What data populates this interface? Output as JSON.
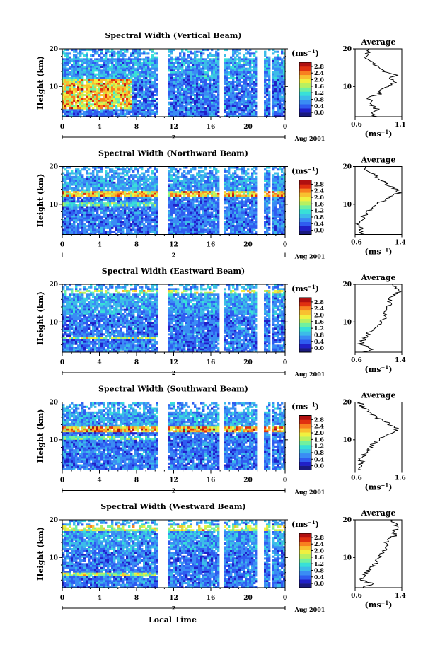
{
  "figure": {
    "xlabel": "Local Time"
  },
  "colors": {
    "gap": "#ffffff",
    "axis": "#000000",
    "profile": "#000000"
  },
  "colorbar": {
    "unit": "(ms",
    "unit_exp": "−1",
    "unit_close": ")",
    "ticks": [
      "2.8",
      "2.4",
      "2.0",
      "1.6",
      "1.2",
      "0.8",
      "0.4",
      "0.0"
    ],
    "colors": [
      "#1a1a80",
      "#2020c8",
      "#2f5cf0",
      "#3a8cf4",
      "#3cbce8",
      "#38e0d8",
      "#70f0a0",
      "#b8f060",
      "#f0f040",
      "#f8c030",
      "#f88020",
      "#e03010",
      "#b01010"
    ]
  },
  "chart_data": [
    {
      "type": "heatmap",
      "title": "Spectral Width (Vertical Beam)",
      "ylabel": "Height (km)",
      "yticks": [
        "20",
        "10"
      ],
      "ytick_values": [
        20,
        10
      ],
      "ylim": [
        2,
        20
      ],
      "xticks": [
        "0",
        "4",
        "8",
        "12",
        "16",
        "20",
        "0"
      ],
      "xlim": [
        0,
        24
      ],
      "day_label": "2",
      "month_label": "Aug 2001",
      "gaps": [
        [
          10.3,
          11.5
        ],
        [
          17.0,
          17.4
        ],
        [
          21.0,
          21.8
        ],
        [
          22.3,
          22.7
        ]
      ],
      "hotspots": [
        [
          0,
          7.5,
          4,
          12,
          1.6
        ]
      ],
      "noise": 0.35,
      "profile": {
        "title": "Average",
        "xticks": [
          "0.6",
          "1.1"
        ],
        "xlim": [
          0.6,
          1.1
        ],
        "xlabel": "(ms",
        "xlabel_exp": "−1",
        "xlabel_close": ")",
        "yticks": [
          "20",
          "10"
        ],
        "heights": [
          2,
          3,
          4,
          5,
          6,
          7,
          8,
          9,
          10,
          11,
          12,
          13,
          14,
          15,
          16,
          17,
          18,
          19,
          20
        ],
        "values": [
          0.82,
          0.8,
          0.83,
          0.78,
          0.8,
          0.74,
          0.86,
          0.84,
          0.95,
          1.02,
          0.98,
          1.04,
          0.92,
          0.88,
          0.8,
          0.74,
          0.7,
          0.74,
          0.72
        ]
      }
    },
    {
      "type": "heatmap",
      "title": "Spectral Width (Northward Beam)",
      "ylabel": "Height (km)",
      "yticks": [
        "20",
        "10"
      ],
      "ytick_values": [
        20,
        10
      ],
      "ylim": [
        2,
        20
      ],
      "xticks": [
        "0",
        "4",
        "8",
        "12",
        "16",
        "20",
        "0"
      ],
      "xlim": [
        0,
        24
      ],
      "day_label": "2",
      "month_label": "Aug 2001",
      "gaps": [
        [
          10.3,
          11.5
        ],
        [
          17.0,
          17.4
        ],
        [
          21.0,
          21.8
        ],
        [
          22.3,
          22.7
        ]
      ],
      "hotspots": [
        [
          0,
          24,
          12.2,
          13.4,
          1.4
        ],
        [
          0,
          10,
          9.5,
          10.5,
          0.8
        ]
      ],
      "noise": 0.3,
      "profile": {
        "title": "Average",
        "xticks": [
          "0.6",
          "1.4"
        ],
        "xlim": [
          0.6,
          1.4
        ],
        "xlabel": "(ms",
        "xlabel_exp": "−1",
        "xlabel_close": ")",
        "yticks": [
          "20",
          "10"
        ],
        "heights": [
          2,
          3,
          4,
          5,
          6,
          7,
          8,
          9,
          10,
          11,
          12,
          13,
          14,
          15,
          16,
          17,
          18,
          19,
          20
        ],
        "values": [
          0.72,
          0.68,
          0.7,
          0.66,
          0.72,
          0.76,
          0.8,
          0.88,
          0.95,
          1.1,
          1.22,
          1.35,
          1.3,
          1.18,
          1.1,
          1.0,
          0.92,
          0.8,
          0.78
        ]
      }
    },
    {
      "type": "heatmap",
      "title": "Spectral Width (Eastward Beam)",
      "ylabel": "Height (km)",
      "yticks": [
        "20",
        "10"
      ],
      "ytick_values": [
        20,
        10
      ],
      "ylim": [
        2,
        20
      ],
      "xticks": [
        "0",
        "4",
        "8",
        "12",
        "16",
        "20",
        "0"
      ],
      "xlim": [
        0,
        24
      ],
      "day_label": "2",
      "month_label": "Aug 2001",
      "gaps": [
        [
          10.3,
          11.5
        ],
        [
          17.0,
          17.4
        ],
        [
          21.0,
          21.8
        ],
        [
          22.3,
          22.7
        ]
      ],
      "hotspots": [
        [
          0,
          10,
          5.3,
          5.9,
          1.2
        ],
        [
          0,
          24,
          17.5,
          18.5,
          1.0
        ]
      ],
      "noise": 0.3,
      "profile": {
        "title": "Average",
        "xticks": [
          "0.6",
          "1.4"
        ],
        "xlim": [
          0.6,
          1.4
        ],
        "xlabel": "(ms",
        "xlabel_exp": "−1",
        "xlabel_close": ")",
        "yticks": [
          "20",
          "10"
        ],
        "heights": [
          2,
          3,
          4,
          5,
          6,
          7,
          8,
          9,
          10,
          11,
          12,
          13,
          14,
          15,
          16,
          17,
          18,
          19,
          20
        ],
        "values": [
          0.75,
          0.9,
          0.7,
          0.72,
          0.78,
          0.82,
          0.9,
          0.98,
          1.05,
          1.1,
          1.12,
          1.1,
          1.15,
          1.2,
          1.18,
          1.25,
          1.38,
          1.3,
          1.25
        ]
      }
    },
    {
      "type": "heatmap",
      "title": "Spectral Width (Southward Beam)",
      "ylabel": "Height (km)",
      "yticks": [
        "20",
        "10"
      ],
      "ytick_values": [
        20,
        10
      ],
      "ylim": [
        2,
        20
      ],
      "xticks": [
        "0",
        "4",
        "8",
        "12",
        "16",
        "20",
        "0"
      ],
      "xlim": [
        0,
        24
      ],
      "day_label": "2",
      "month_label": "Aug 2001",
      "gaps": [
        [
          10.3,
          11.5
        ],
        [
          17.0,
          17.4
        ],
        [
          21.0,
          21.8
        ],
        [
          22.3,
          22.7
        ]
      ],
      "hotspots": [
        [
          0,
          24,
          12.0,
          13.6,
          1.6
        ],
        [
          0,
          10,
          10.0,
          10.8,
          0.8
        ]
      ],
      "noise": 0.3,
      "profile": {
        "title": "Average",
        "xticks": [
          "0.6",
          "1.6"
        ],
        "xlim": [
          0.6,
          1.6
        ],
        "xlabel": "(ms",
        "xlabel_exp": "−1",
        "xlabel_close": ")",
        "yticks": [
          "20",
          "10"
        ],
        "heights": [
          2,
          3,
          4,
          5,
          6,
          7,
          8,
          9,
          10,
          11,
          12,
          13,
          14,
          15,
          16,
          17,
          18,
          19,
          20
        ],
        "values": [
          0.72,
          0.7,
          0.74,
          0.72,
          0.78,
          0.85,
          0.92,
          1.0,
          1.1,
          1.25,
          1.4,
          1.5,
          1.35,
          1.2,
          1.05,
          0.95,
          0.85,
          0.75,
          0.7
        ]
      }
    },
    {
      "type": "heatmap",
      "title": "Spectral Width (Westward Beam)",
      "ylabel": "Height (km)",
      "yticks": [
        "20",
        "10"
      ],
      "ytick_values": [
        20,
        10
      ],
      "ylim": [
        2,
        20
      ],
      "xticks": [
        "0",
        "4",
        "8",
        "12",
        "16",
        "20",
        "0"
      ],
      "xlim": [
        0,
        24
      ],
      "day_label": "2",
      "month_label": "Aug 2001",
      "gaps": [
        [
          10.3,
          11.5
        ],
        [
          17.0,
          17.4
        ],
        [
          21.0,
          21.8
        ],
        [
          22.3,
          22.7
        ]
      ],
      "hotspots": [
        [
          0,
          10,
          5.2,
          5.8,
          1.2
        ],
        [
          0,
          24,
          17.2,
          18.4,
          1.0
        ]
      ],
      "noise": 0.3,
      "profile": {
        "title": "Average",
        "xticks": [
          "0.6",
          "1.4"
        ],
        "xlim": [
          0.6,
          1.4
        ],
        "xlabel": "(ms",
        "xlabel_exp": "−1",
        "xlabel_close": ")",
        "yticks": [
          "20",
          "10"
        ],
        "heights": [
          2,
          3,
          4,
          5,
          6,
          7,
          8,
          9,
          10,
          11,
          12,
          13,
          14,
          15,
          16,
          17,
          18,
          19,
          20
        ],
        "values": [
          0.72,
          0.95,
          0.7,
          0.74,
          0.8,
          0.86,
          0.92,
          0.98,
          1.02,
          1.05,
          1.1,
          1.15,
          1.12,
          1.2,
          1.3,
          1.25,
          1.36,
          1.28,
          1.25
        ]
      }
    }
  ]
}
